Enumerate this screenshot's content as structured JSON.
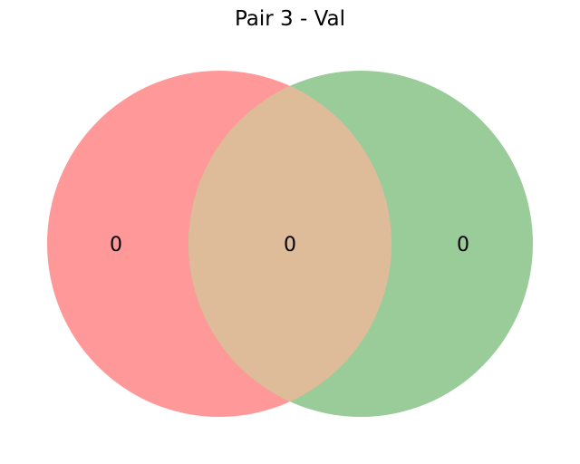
{
  "title": "Pair 3 - Val",
  "chart_data": {
    "type": "venn",
    "title": "Pair 3 - Val",
    "sets": [
      {
        "color": "#ff9999",
        "only_count": "0"
      },
      {
        "color": "#99cc99",
        "only_count": "0"
      }
    ],
    "intersection": {
      "color": "#dfbc99",
      "count": "0"
    }
  }
}
